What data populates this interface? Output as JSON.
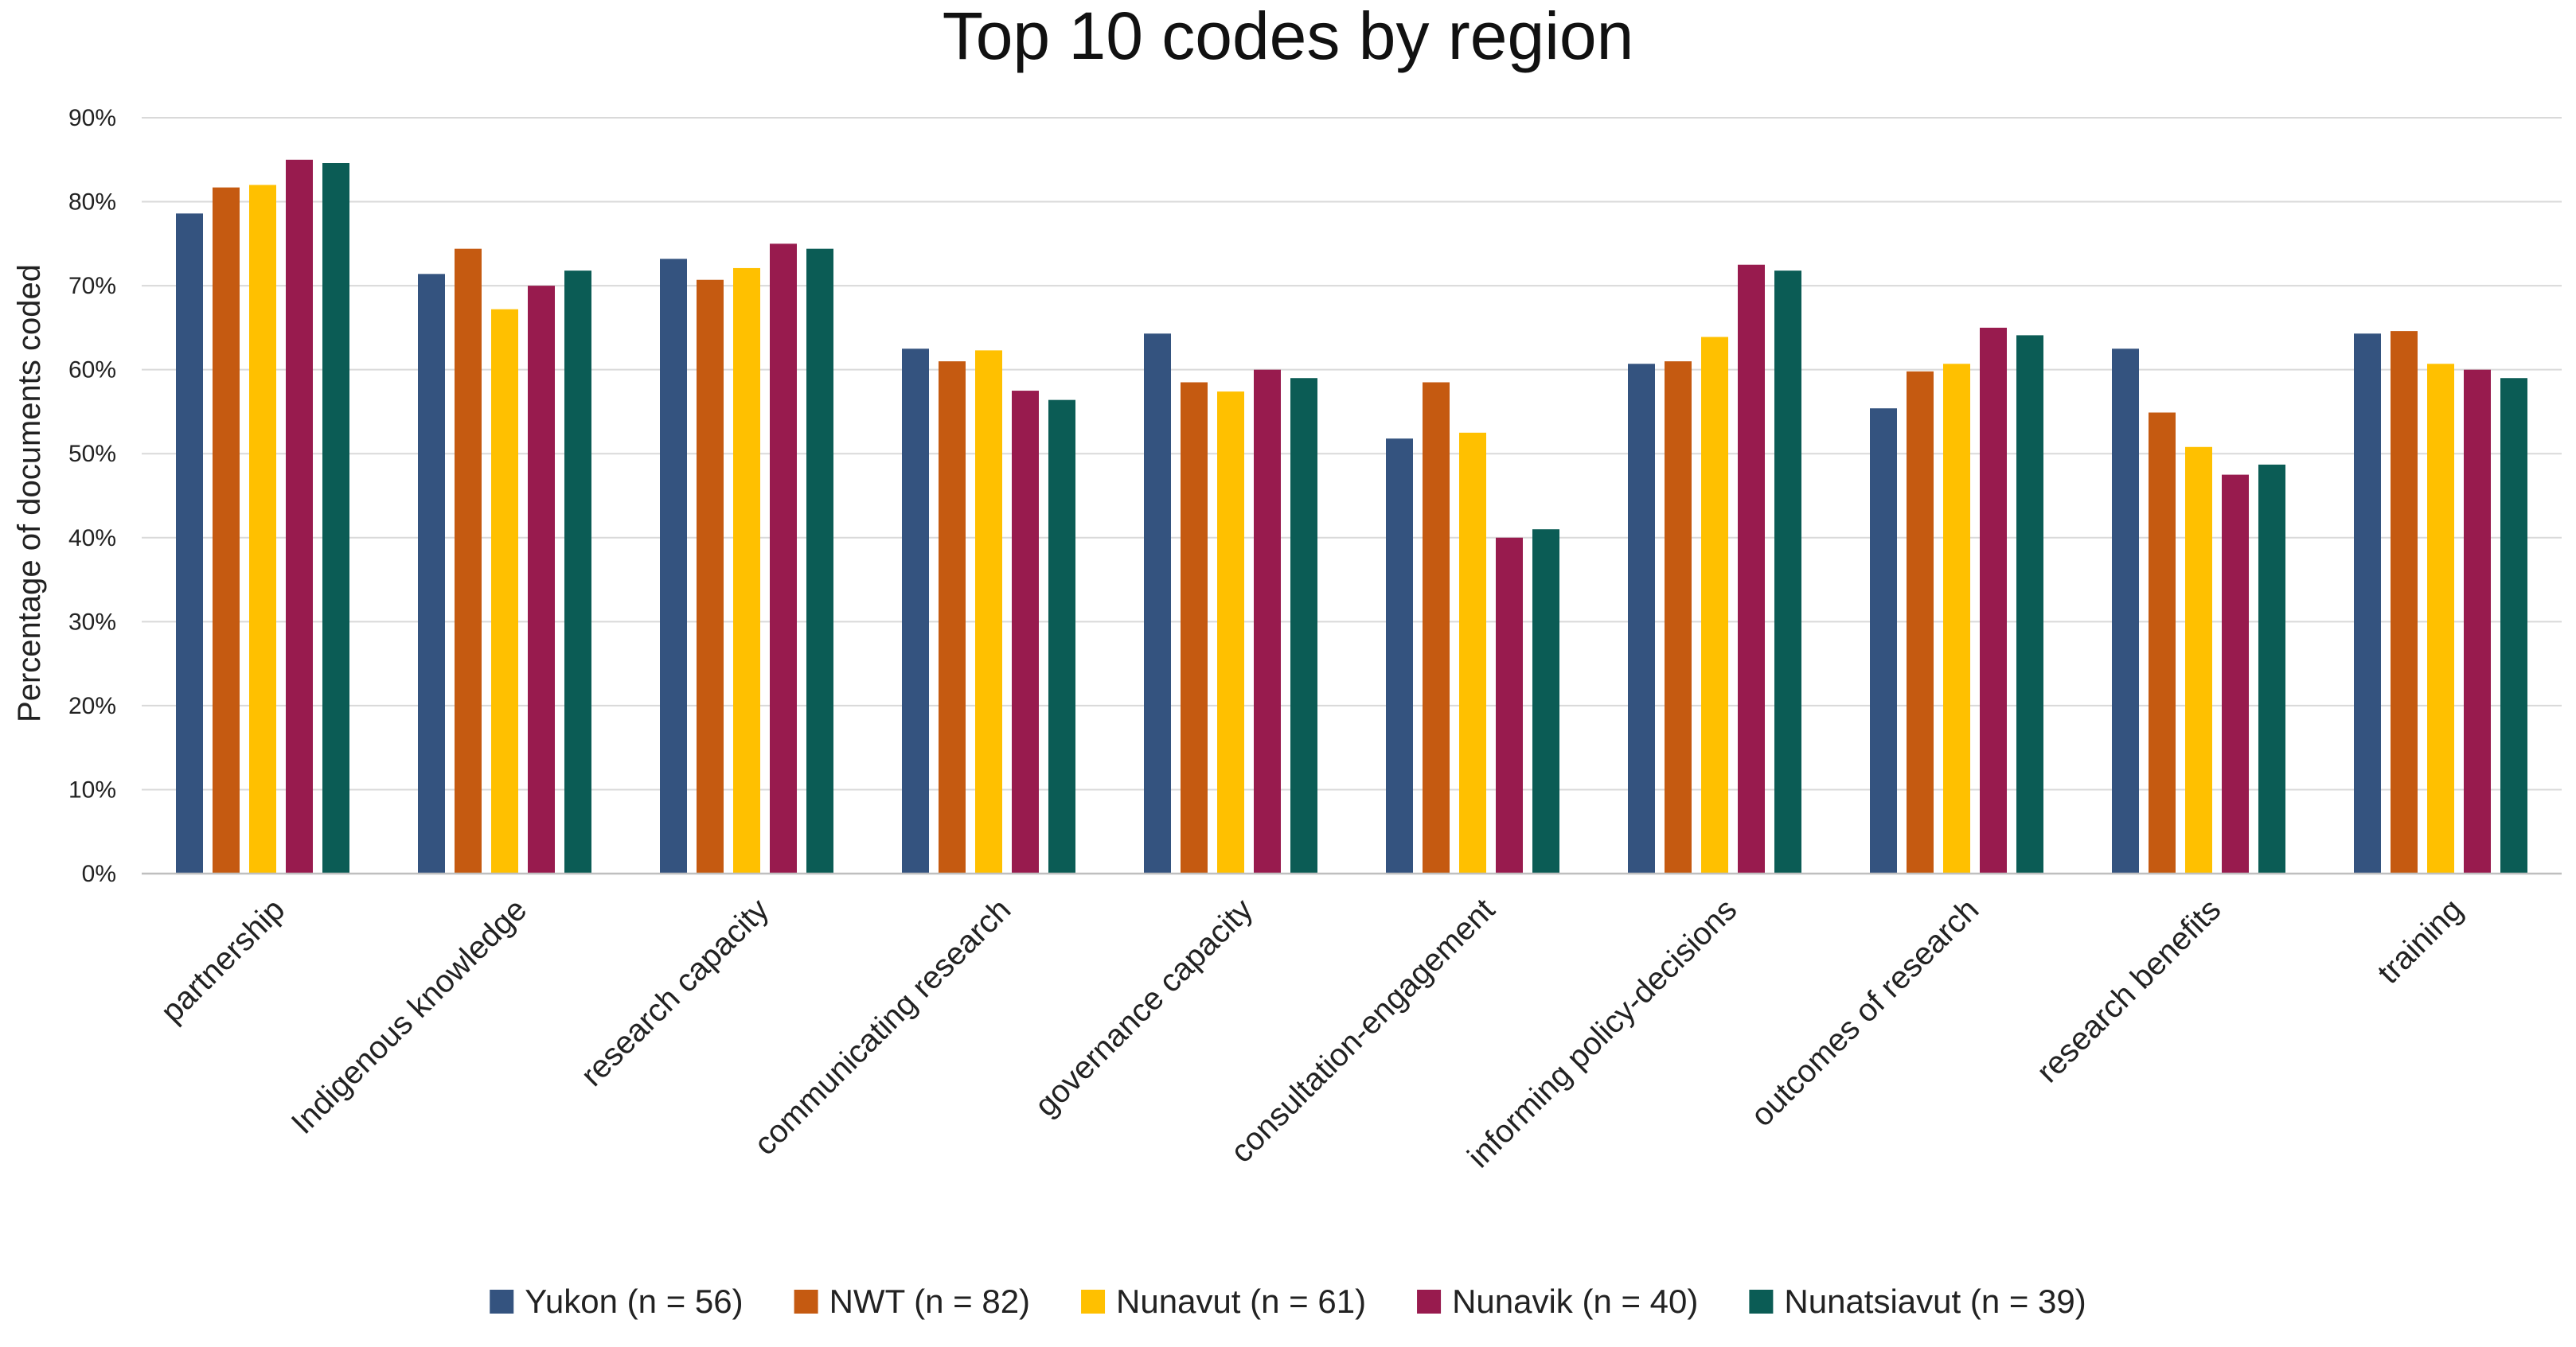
{
  "chart_data": {
    "type": "bar",
    "title": "Top 10 codes by region",
    "xlabel": "",
    "ylabel": "Percentage of documents coded",
    "ylim": [
      0,
      90
    ],
    "ytick_values": [
      0,
      10,
      20,
      30,
      40,
      50,
      60,
      70,
      80,
      90
    ],
    "ytick_labels": [
      "0%",
      "10%",
      "20%",
      "30%",
      "40%",
      "50%",
      "60%",
      "70%",
      "80%",
      "90%"
    ],
    "grid": true,
    "legend_position": "bottom",
    "categories": [
      "partnership",
      "Indigenous knowledge",
      "research capacity",
      "communicating research",
      "governance capacity",
      "consultation-engagement",
      "informing policy-decisions",
      "outcomes of research",
      "research benefits",
      "training"
    ],
    "series": [
      {
        "name": "Yukon (n = 56)",
        "color": "#34537f",
        "values": [
          78.6,
          71.4,
          73.2,
          62.5,
          64.3,
          51.8,
          60.7,
          55.4,
          62.5,
          64.3
        ]
      },
      {
        "name": "NWT (n = 82)",
        "color": "#c55a11",
        "values": [
          81.7,
          74.4,
          70.7,
          61.0,
          58.5,
          58.5,
          61.0,
          59.8,
          54.9,
          64.6
        ]
      },
      {
        "name": "Nunavut (n = 61)",
        "color": "#ffc000",
        "values": [
          82.0,
          67.2,
          72.1,
          62.3,
          57.4,
          52.5,
          63.9,
          60.7,
          50.8,
          60.7
        ]
      },
      {
        "name": "Nunavik (n = 40)",
        "color": "#981b4e",
        "values": [
          85.0,
          70.0,
          75.0,
          57.5,
          60.0,
          40.0,
          72.5,
          65.0,
          47.5,
          60.0
        ]
      },
      {
        "name": "Nunatsiavut (n = 39)",
        "color": "#0b5c55",
        "values": [
          84.6,
          71.8,
          74.4,
          56.4,
          59.0,
          41.0,
          71.8,
          64.1,
          48.7,
          59.0
        ]
      }
    ]
  }
}
